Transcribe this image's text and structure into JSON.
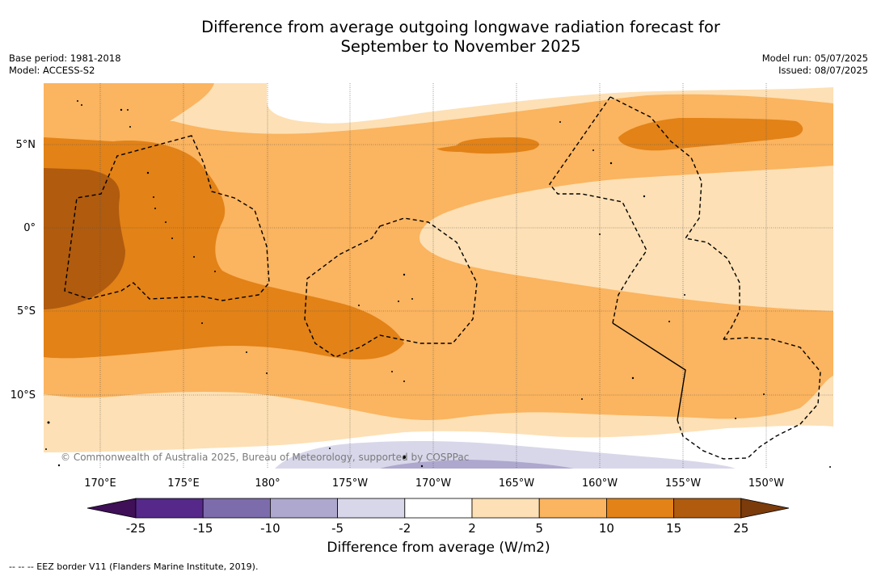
{
  "title_line1": "Difference from average outgoing longwave radiation forecast for",
  "title_line2": "September to November 2025",
  "meta_left": [
    "Base period: 1981-2018",
    "Model: ACCESS-S2"
  ],
  "meta_right": [
    "Model run: 05/07/2025",
    "Issued: 08/07/2025"
  ],
  "copyright": "© Commonwealth of Australia 2025, Bureau of Meteorology, supported by COSPPac",
  "lon_labels": [
    "170°E",
    "175°E",
    "180°",
    "175°W",
    "170°W",
    "165°W",
    "160°W",
    "155°W",
    "150°W"
  ],
  "lat_labels": [
    "5°N",
    "0°",
    "5°S",
    "10°S"
  ],
  "colorbar": {
    "title": "Difference from average (W/m2)",
    "ticks": [
      "-25",
      "-15",
      "-10",
      "-5",
      "-2",
      "2",
      "5",
      "10",
      "15",
      "25"
    ],
    "colors": [
      "#3f0f57",
      "#55288a",
      "#7d6cab",
      "#aea8cf",
      "#d8d7ea",
      "#ffffff",
      "#fde0b5",
      "#fbb45f",
      "#e28217",
      "#b05b0e",
      "#7b3b0a"
    ]
  },
  "legend_line": "--  --  -- EEZ border V11 (Flanders Marine Institute, 2019)."
}
